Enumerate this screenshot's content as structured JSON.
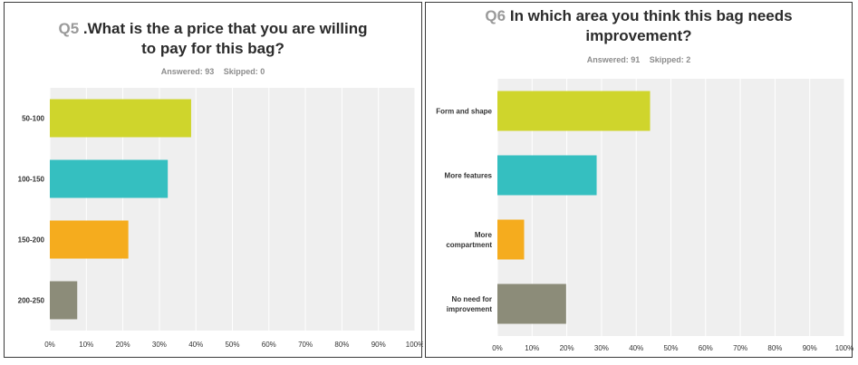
{
  "colors": [
    "#cfd52c",
    "#35bfc0",
    "#f5ac1e",
    "#8c8c79"
  ],
  "charts": [
    {
      "question_number": "Q5",
      "question_text": ".What is the a price that you are willing",
      "question_text_line2": "to pay for this bag?",
      "answered_label": "Answered: 93",
      "skipped_label": "Skipped: 0"
    },
    {
      "question_number": "Q6",
      "question_text": "In which area you think this bag needs",
      "question_text_line2": "improvement?",
      "answered_label": "Answered: 91",
      "skipped_label": "Skipped: 2"
    }
  ],
  "chart_data": [
    {
      "type": "bar",
      "orientation": "horizontal",
      "title": "Q5 .What is the a price that you are willing to pay for this bag?",
      "categories": [
        "50-100",
        "100-150",
        "150-200",
        "200-250"
      ],
      "values": [
        38.7,
        32.3,
        21.5,
        7.5
      ],
      "xlim": [
        0,
        100
      ],
      "xticks": [
        "0%",
        "10%",
        "20%",
        "30%",
        "40%",
        "50%",
        "60%",
        "70%",
        "80%",
        "90%",
        "100%"
      ]
    },
    {
      "type": "bar",
      "orientation": "horizontal",
      "title": "Q6 In which area you think this bag needs improvement?",
      "categories": [
        [
          "Form and shape"
        ],
        [
          "More features"
        ],
        [
          "More",
          "compartment"
        ],
        [
          "No need for",
          "improvement"
        ]
      ],
      "values": [
        44.0,
        28.6,
        7.7,
        19.8
      ],
      "xlim": [
        0,
        100
      ],
      "xticks": [
        "0%",
        "10%",
        "20%",
        "30%",
        "40%",
        "50%",
        "60%",
        "70%",
        "80%",
        "90%",
        "100%"
      ]
    }
  ]
}
